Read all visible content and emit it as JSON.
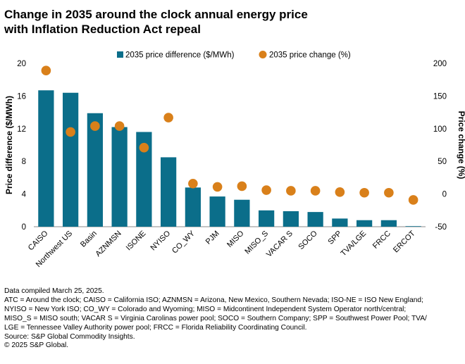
{
  "title_line1": "Change in 2035 around the clock annual energy price",
  "title_line2": "with Inflation Reduction Act repeal",
  "chart_data": {
    "type": "bar",
    "categories": [
      "CAISO",
      "Northwest US",
      "Basin",
      "AZNMSN",
      "ISONE",
      "NYISO",
      "CO_WY",
      "PJM",
      "MISO",
      "MISO_S",
      "VACAR S",
      "SOCO",
      "SPP",
      "TVA/LGE",
      "FRCC",
      "ERCOT"
    ],
    "series": [
      {
        "name": "2035 price difference ($/MWh)",
        "type": "bar",
        "axis": "left",
        "color": "#0b6e8a",
        "values": [
          16.7,
          16.4,
          13.9,
          12.2,
          11.6,
          8.5,
          4.8,
          3.7,
          3.3,
          2.0,
          1.9,
          1.8,
          1.0,
          0.8,
          0.8,
          0.05
        ]
      },
      {
        "name": "2035 price change (%)",
        "type": "scatter",
        "axis": "right",
        "color": "#d9801a",
        "values": [
          189,
          95,
          104,
          104,
          71,
          117,
          16,
          11,
          12,
          6,
          5,
          5,
          3,
          2,
          2,
          -9
        ]
      }
    ],
    "ylabel": "Price difference ($/MWh)",
    "y2label": "Price change (%)",
    "ylim": [
      0,
      20
    ],
    "yticks": [
      "0",
      "4",
      "8",
      "12",
      "16",
      "20"
    ],
    "y2lim": [
      -50,
      200
    ],
    "y2ticks": [
      "-50",
      "0",
      "50",
      "100",
      "150",
      "200"
    ],
    "legend_position": "top"
  },
  "notes": [
    "Data compiled March 25, 2025.",
    "ATC = Around the clock; CAISO = California ISO; AZNMSN = Arizona, New Mexico, Southern Nevada; ISO-NE = ISO New England;",
    "NYISO = New York ISO; CO_WY = Colorado and Wyoming; MISO = Midcontinent Independent System Operator north/central;",
    "MISO_S = MISO south; VACAR S = Virginia Carolinas power pool; SOCO = Southern Company; SPP = Southwest Power Pool; TVA/",
    "LGE = Tennessee Valley Authority power pool; FRCC = Florida Reliability Coordinating Council.",
    "Source: S&P Global Commodity Insights.",
    "© 2025 S&P Global."
  ]
}
